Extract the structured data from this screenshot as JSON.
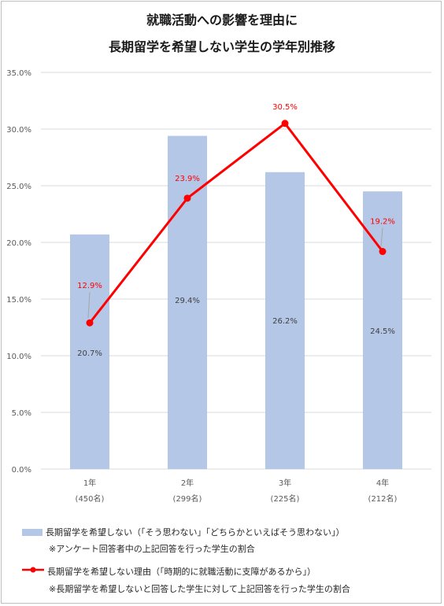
{
  "title": {
    "line1": "就職活動への影響を理由に",
    "line2": "長期留学を希望しない学生の学年別推移"
  },
  "legend": {
    "bar_label": "長期留学を希望しない（「そう思わない」「どちらかといえばそう思わない」）",
    "bar_note": "※アンケート回答者中の上記回答を行った学生の割合",
    "line_label": "長期留学を希望しない理由（「時期的に就職活動に支障があるから」）",
    "line_note": "※長期留学を希望しないと回答した学生に対して上記回答を行った学生の割合"
  },
  "chart_data": {
    "type": "bar",
    "categories": [
      "1年",
      "2年",
      "3年",
      "4年"
    ],
    "category_sublabels": [
      "(450名)",
      "(299名)",
      "(225名)",
      "(212名)"
    ],
    "series": [
      {
        "name": "長期留学を希望しない（「そう思わない」「どちらかといえばそう思わない」）",
        "type": "bar",
        "values": [
          20.7,
          29.4,
          26.2,
          24.5
        ],
        "labels": [
          "20.7%",
          "29.4%",
          "26.2%",
          "24.5%"
        ],
        "color": "#b4c7e7"
      },
      {
        "name": "長期留学を希望しない理由（「時期的に就職活動に支障があるから」）",
        "type": "line",
        "values": [
          12.9,
          23.9,
          30.5,
          19.2
        ],
        "labels": [
          "12.9%",
          "23.9%",
          "30.5%",
          "19.2%"
        ],
        "color": "#ff0000"
      }
    ],
    "ylim": [
      0,
      35
    ],
    "yticks": [
      "0.0%",
      "5.0%",
      "10.0%",
      "15.0%",
      "20.0%",
      "25.0%",
      "30.0%",
      "35.0%"
    ],
    "grid": true,
    "legend_position": "bottom"
  }
}
